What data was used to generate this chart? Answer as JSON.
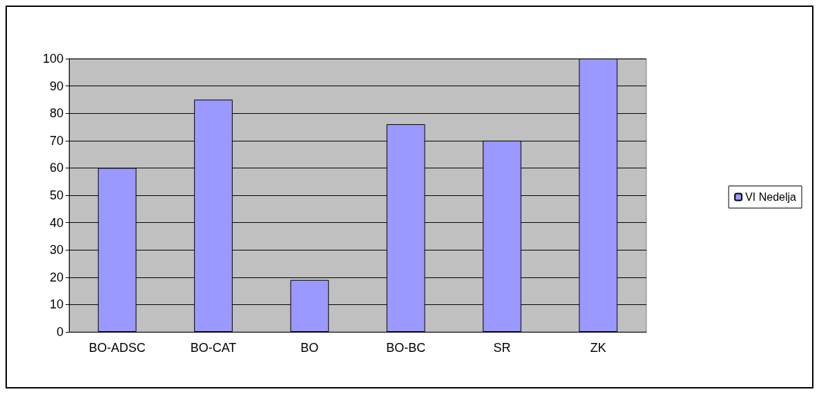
{
  "chart_data": {
    "type": "bar",
    "categories": [
      "BO-ADSC",
      "BO-CAT",
      "BO",
      "BO-BC",
      "SR",
      "ZK"
    ],
    "series": [
      {
        "name": "VI Nedelja",
        "color": "#9999ff",
        "values": [
          60,
          85,
          19,
          76,
          70,
          100
        ]
      }
    ],
    "ylim": [
      0,
      100
    ],
    "yticks": [
      0,
      10,
      20,
      30,
      40,
      50,
      60,
      70,
      80,
      90,
      100
    ],
    "grid": "y",
    "legend": "right"
  }
}
